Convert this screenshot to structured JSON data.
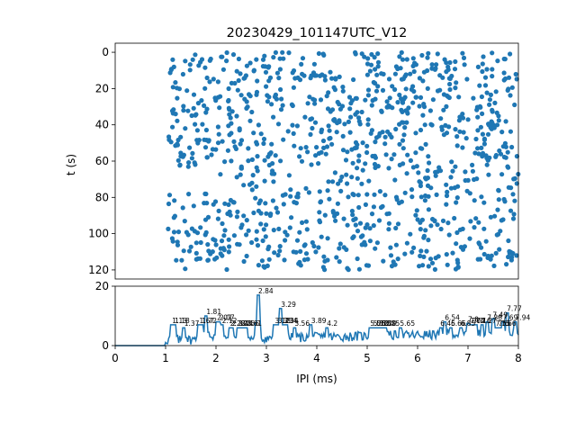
{
  "chart_data": [
    {
      "type": "scatter",
      "title": "20230429_101147UTC_V12",
      "ylabel": "t (s)",
      "xlim": [
        0,
        8
      ],
      "ylim": [
        125,
        -5
      ],
      "y_ticks": [
        0,
        20,
        40,
        60,
        80,
        100,
        120
      ],
      "y_inverted": true,
      "color": "#1f77b4",
      "marker": "circle",
      "bands": [
        {
          "t": [
            0,
            30
          ],
          "x": [
            1.05,
            8.0
          ],
          "n": 300
        },
        {
          "t": [
            30,
            65
          ],
          "x": [
            1.05,
            8.0
          ],
          "n": 330
        },
        {
          "t": [
            65,
            78
          ],
          "x": [
            2.0,
            8.0
          ],
          "n": 80
        },
        {
          "t": [
            78,
            120
          ],
          "x": [
            1.05,
            8.0
          ],
          "n": 360
        }
      ]
    },
    {
      "type": "line",
      "xlabel": "IPI (ms)",
      "xlim": [
        0,
        8
      ],
      "ylim": [
        0,
        20
      ],
      "x_ticks": [
        0,
        1,
        2,
        3,
        4,
        5,
        6,
        7,
        8
      ],
      "y_ticks": [
        0,
        20
      ],
      "color": "#1f77b4",
      "peaks": [
        {
          "x": 1.13,
          "y": 7,
          "label": "1.13"
        },
        {
          "x": 1.18,
          "y": 7,
          "label": "1.18"
        },
        {
          "x": 1.37,
          "y": 6,
          "label": "1.37"
        },
        {
          "x": 1.67,
          "y": 7,
          "label": "1.67"
        },
        {
          "x": 1.72,
          "y": 7,
          "label": "1.72"
        },
        {
          "x": 1.81,
          "y": 10,
          "label": "1.81"
        },
        {
          "x": 2.02,
          "y": 8,
          "label": "2.02"
        },
        {
          "x": 2.07,
          "y": 8,
          "label": "2.07"
        },
        {
          "x": 2.12,
          "y": 7,
          "label": "2.12"
        },
        {
          "x": 2.28,
          "y": 6,
          "label": "2.28"
        },
        {
          "x": 2.32,
          "y": 6,
          "label": "2.32"
        },
        {
          "x": 2.44,
          "y": 6,
          "label": "2.44"
        },
        {
          "x": 2.5,
          "y": 6,
          "label": "2.5"
        },
        {
          "x": 2.56,
          "y": 6,
          "label": "2.56"
        },
        {
          "x": 2.61,
          "y": 6,
          "label": "2.61"
        },
        {
          "x": 2.84,
          "y": 17,
          "label": "2.84"
        },
        {
          "x": 3.17,
          "y": 7,
          "label": "3.17"
        },
        {
          "x": 3.23,
          "y": 7,
          "label": "3.23"
        },
        {
          "x": 3.29,
          "y": 12.5,
          "label": "3.29"
        },
        {
          "x": 3.34,
          "y": 7,
          "label": "3.34"
        },
        {
          "x": 3.4,
          "y": 7,
          "label": "3.4"
        },
        {
          "x": 3.56,
          "y": 6,
          "label": "3.56"
        },
        {
          "x": 3.89,
          "y": 7,
          "label": "3.89"
        },
        {
          "x": 4.2,
          "y": 6,
          "label": "4.2"
        },
        {
          "x": 5.06,
          "y": 6,
          "label": "5.06"
        },
        {
          "x": 5.12,
          "y": 6,
          "label": "5.12"
        },
        {
          "x": 5.18,
          "y": 6,
          "label": "5.18"
        },
        {
          "x": 5.24,
          "y": 6,
          "label": "5.24"
        },
        {
          "x": 5.29,
          "y": 6,
          "label": "5.29"
        },
        {
          "x": 5.35,
          "y": 6,
          "label": "5.35"
        },
        {
          "x": 5.65,
          "y": 6,
          "label": "5.65"
        },
        {
          "x": 6.45,
          "y": 6,
          "label": "6.45"
        },
        {
          "x": 6.54,
          "y": 8,
          "label": "6.54"
        },
        {
          "x": 6.66,
          "y": 6,
          "label": "6.66"
        },
        {
          "x": 6.85,
          "y": 6,
          "label": "6.85"
        },
        {
          "x": 7.0,
          "y": 7.5,
          "label": "7.0"
        },
        {
          "x": 7.04,
          "y": 7,
          "label": "7.04"
        },
        {
          "x": 7.1,
          "y": 7,
          "label": "7.1"
        },
        {
          "x": 7.16,
          "y": 7,
          "label": "7.16"
        },
        {
          "x": 7.27,
          "y": 7,
          "label": "7.27"
        },
        {
          "x": 7.38,
          "y": 8,
          "label": "7.38"
        },
        {
          "x": 7.49,
          "y": 9,
          "label": "7.49"
        },
        {
          "x": 7.55,
          "y": 6,
          "label": "7.55"
        },
        {
          "x": 7.6,
          "y": 6,
          "label": "7.6"
        },
        {
          "x": 7.66,
          "y": 6,
          "label": "7.66"
        },
        {
          "x": 7.69,
          "y": 8,
          "label": "7.69"
        },
        {
          "x": 7.77,
          "y": 11,
          "label": "7.77"
        },
        {
          "x": 7.94,
          "y": 8,
          "label": "7.94"
        }
      ]
    }
  ]
}
